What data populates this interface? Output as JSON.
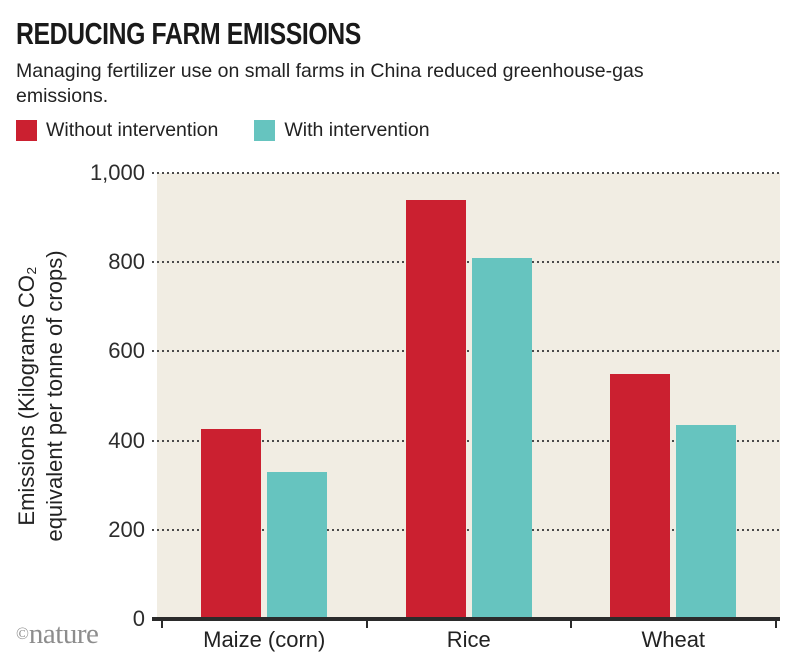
{
  "header": {
    "title": "REDUCING FARM EMISSIONS",
    "subtitle": "Managing fertilizer use on small farms in China reduced greenhouse-gas emissions."
  },
  "legend": {
    "items": [
      {
        "label": "Without intervention",
        "color": "#cb2030"
      },
      {
        "label": "With intervention",
        "color": "#66c4bf"
      }
    ]
  },
  "footer": {
    "brand_symbol": "©",
    "brand_name": "nature"
  },
  "chart_data": {
    "type": "bar",
    "title": "REDUCING FARM EMISSIONS",
    "subtitle": "Managing fertilizer use on small farms in China reduced greenhouse-gas emissions.",
    "categories": [
      "Maize (corn)",
      "Rice",
      "Wheat"
    ],
    "series": [
      {
        "name": "Without intervention",
        "color": "#cb2030",
        "values": [
          425,
          940,
          550
        ]
      },
      {
        "name": "With intervention",
        "color": "#66c4bf",
        "values": [
          330,
          810,
          435
        ]
      }
    ],
    "xlabel": "",
    "ylabel_line1": "Emissions (Kilograms CO₂",
    "ylabel_line2": "equivalent per tonne of crops)",
    "ylim": [
      0,
      1000
    ],
    "yticks": [
      0,
      200,
      400,
      600,
      800,
      1000
    ],
    "ytick_labels": [
      "0",
      "200",
      "400",
      "600",
      "800",
      "1,000"
    ],
    "grid": "horizontal-dotted",
    "gridline_color": "#4a4a4a",
    "legend_position": "top-left",
    "plot_background": "#f1ede3",
    "axis_color": "#2b2b2b",
    "source_brand": "©nature"
  }
}
